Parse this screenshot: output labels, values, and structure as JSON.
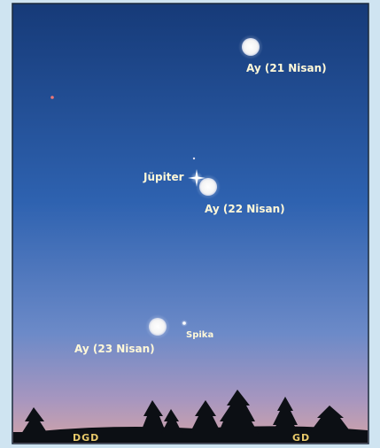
{
  "objects": [
    {
      "label": "Ay (21 Nisan)"
    },
    {
      "label": "Jüpiter"
    },
    {
      "label": "Ay (22 Nisan)"
    },
    {
      "label": "Spika"
    },
    {
      "label": "Ay (23 Nisan)"
    }
  ],
  "horizon": {
    "left": "DGD",
    "right": "GD"
  }
}
